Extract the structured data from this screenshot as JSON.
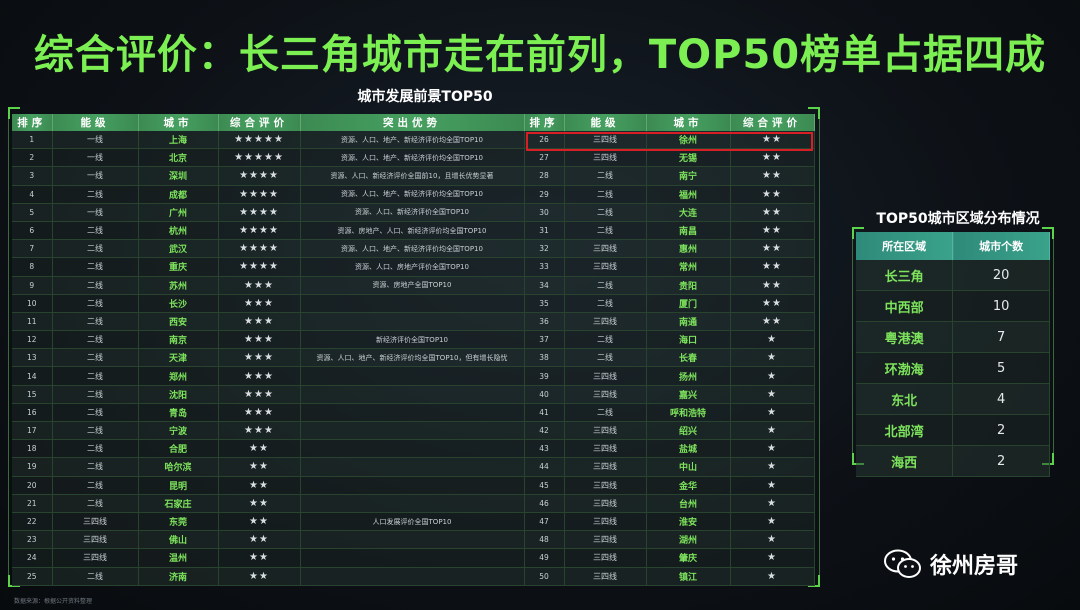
{
  "title": "综合评价：长三角城市走在前列，TOP50榜单占据四成",
  "main_table": {
    "title": "城市发展前景TOP50",
    "headers": [
      "排序",
      "能级",
      "城市",
      "综合评价",
      "突出优势",
      "排序",
      "能级",
      "城市",
      "综合评价"
    ],
    "left_rows": [
      {
        "rank": "1",
        "level": "一线",
        "city": "上海",
        "stars": "★★★★★",
        "advantage": "资源、人口、地产、新经济评价均全国TOP10"
      },
      {
        "rank": "2",
        "level": "一线",
        "city": "北京",
        "stars": "★★★★★",
        "advantage": "资源、人口、地产、新经济评价均全国TOP10"
      },
      {
        "rank": "3",
        "level": "一线",
        "city": "深圳",
        "stars": "★★★★",
        "advantage": "资源、人口、新经济评价全国前10，且增长优势显著"
      },
      {
        "rank": "4",
        "level": "二线",
        "city": "成都",
        "stars": "★★★★",
        "advantage": "资源、人口、地产、新经济评价均全国TOP10"
      },
      {
        "rank": "5",
        "level": "一线",
        "city": "广州",
        "stars": "★★★★",
        "advantage": "资源、人口、新经济评价全国TOP10"
      },
      {
        "rank": "6",
        "level": "二线",
        "city": "杭州",
        "stars": "★★★★",
        "advantage": "资源、房地产、人口、新经济评价均全国TOP10"
      },
      {
        "rank": "7",
        "level": "二线",
        "city": "武汉",
        "stars": "★★★★",
        "advantage": "资源、人口、地产、新经济评价均全国TOP10"
      },
      {
        "rank": "8",
        "level": "二线",
        "city": "重庆",
        "stars": "★★★★",
        "advantage": "资源、人口、房地产评价全国TOP10"
      },
      {
        "rank": "9",
        "level": "二线",
        "city": "苏州",
        "stars": "★★★",
        "advantage": "资源、房地产全国TOP10"
      },
      {
        "rank": "10",
        "level": "二线",
        "city": "长沙",
        "stars": "★★★",
        "advantage": ""
      },
      {
        "rank": "11",
        "level": "二线",
        "city": "西安",
        "stars": "★★★",
        "advantage": ""
      },
      {
        "rank": "12",
        "level": "二线",
        "city": "南京",
        "stars": "★★★",
        "advantage": "新经济评价全国TOP10"
      },
      {
        "rank": "13",
        "level": "二线",
        "city": "天津",
        "stars": "★★★",
        "advantage": "资源、人口、地产、新经济评价均全国TOP10，但有增长隐忧"
      },
      {
        "rank": "14",
        "level": "二线",
        "city": "郑州",
        "stars": "★★★",
        "advantage": ""
      },
      {
        "rank": "15",
        "level": "二线",
        "city": "沈阳",
        "stars": "★★★",
        "advantage": ""
      },
      {
        "rank": "16",
        "level": "二线",
        "city": "青岛",
        "stars": "★★★",
        "advantage": ""
      },
      {
        "rank": "17",
        "level": "二线",
        "city": "宁波",
        "stars": "★★★",
        "advantage": ""
      },
      {
        "rank": "18",
        "level": "二线",
        "city": "合肥",
        "stars": "★★",
        "advantage": ""
      },
      {
        "rank": "19",
        "level": "二线",
        "city": "哈尔滨",
        "stars": "★★",
        "advantage": ""
      },
      {
        "rank": "20",
        "level": "二线",
        "city": "昆明",
        "stars": "★★",
        "advantage": ""
      },
      {
        "rank": "21",
        "level": "二线",
        "city": "石家庄",
        "stars": "★★",
        "advantage": ""
      },
      {
        "rank": "22",
        "level": "三四线",
        "city": "东莞",
        "stars": "★★",
        "advantage": "人口发展评价全国TOP10"
      },
      {
        "rank": "23",
        "level": "三四线",
        "city": "佛山",
        "stars": "★★",
        "advantage": ""
      },
      {
        "rank": "24",
        "level": "三四线",
        "city": "温州",
        "stars": "★★",
        "advantage": ""
      },
      {
        "rank": "25",
        "level": "二线",
        "city": "济南",
        "stars": "★★",
        "advantage": ""
      }
    ],
    "right_rows": [
      {
        "rank": "26",
        "level": "三四线",
        "city": "徐州",
        "stars": "★★"
      },
      {
        "rank": "27",
        "level": "三四线",
        "city": "无锡",
        "stars": "★★"
      },
      {
        "rank": "28",
        "level": "二线",
        "city": "南宁",
        "stars": "★★"
      },
      {
        "rank": "29",
        "level": "二线",
        "city": "福州",
        "stars": "★★"
      },
      {
        "rank": "30",
        "level": "二线",
        "city": "大连",
        "stars": "★★"
      },
      {
        "rank": "31",
        "level": "二线",
        "city": "南昌",
        "stars": "★★"
      },
      {
        "rank": "32",
        "level": "三四线",
        "city": "惠州",
        "stars": "★★"
      },
      {
        "rank": "33",
        "level": "三四线",
        "city": "常州",
        "stars": "★★"
      },
      {
        "rank": "34",
        "level": "二线",
        "city": "贵阳",
        "stars": "★★"
      },
      {
        "rank": "35",
        "level": "二线",
        "city": "厦门",
        "stars": "★★"
      },
      {
        "rank": "36",
        "level": "三四线",
        "city": "南通",
        "stars": "★★"
      },
      {
        "rank": "37",
        "level": "二线",
        "city": "海口",
        "stars": "★"
      },
      {
        "rank": "38",
        "level": "二线",
        "city": "长春",
        "stars": "★"
      },
      {
        "rank": "39",
        "level": "三四线",
        "city": "扬州",
        "stars": "★"
      },
      {
        "rank": "40",
        "level": "三四线",
        "city": "嘉兴",
        "stars": "★"
      },
      {
        "rank": "41",
        "level": "二线",
        "city": "呼和浩特",
        "stars": "★"
      },
      {
        "rank": "42",
        "level": "三四线",
        "city": "绍兴",
        "stars": "★"
      },
      {
        "rank": "43",
        "level": "三四线",
        "city": "盐城",
        "stars": "★"
      },
      {
        "rank": "44",
        "level": "三四线",
        "city": "中山",
        "stars": "★"
      },
      {
        "rank": "45",
        "level": "三四线",
        "city": "金华",
        "stars": "★"
      },
      {
        "rank": "46",
        "level": "三四线",
        "city": "台州",
        "stars": "★"
      },
      {
        "rank": "47",
        "level": "三四线",
        "city": "淮安",
        "stars": "★"
      },
      {
        "rank": "48",
        "level": "三四线",
        "city": "湖州",
        "stars": "★"
      },
      {
        "rank": "49",
        "level": "三四线",
        "city": "肇庆",
        "stars": "★"
      },
      {
        "rank": "50",
        "level": "三四线",
        "city": "镇江",
        "stars": "★"
      }
    ]
  },
  "side_table": {
    "title": "TOP50城市区域分布情况",
    "headers": [
      "所在区域",
      "城市个数"
    ],
    "rows": [
      {
        "region": "长三角",
        "count": "20"
      },
      {
        "region": "中西部",
        "count": "10"
      },
      {
        "region": "粤港澳",
        "count": "7"
      },
      {
        "region": "环渤海",
        "count": "5"
      },
      {
        "region": "东北",
        "count": "4"
      },
      {
        "region": "北部湾",
        "count": "2"
      },
      {
        "region": "海西",
        "count": "2"
      }
    ]
  },
  "footnote": "数据来源：根据公开资料整理",
  "brand": {
    "name": "徐州房哥",
    "icon": "wechat-icon"
  },
  "colors": {
    "accent_green": "#7cf052",
    "highlight_red": "#d81f26"
  }
}
